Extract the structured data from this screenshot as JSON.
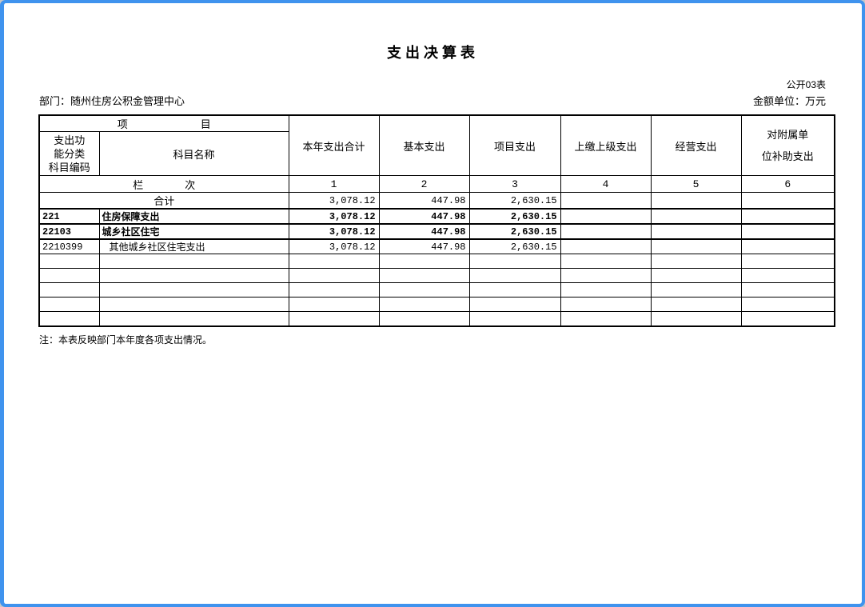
{
  "window": {
    "border_color": "#3f93ee"
  },
  "page": {
    "title": "支出决算表",
    "form_code": "公开03表",
    "department": "部门：随州住房公积金管理中心",
    "amount_unit": "金额单位：万元",
    "footnote": "注：本表反映部门本年度各项支出情况。"
  },
  "table": {
    "project_header": "项　　　　　　　目",
    "code_header": "支出功\n能分类\n科目编码",
    "subject_header": "科目名称",
    "value_columns": [
      "本年支出合计",
      "基本支出",
      "项目支出",
      "上缴上级支出",
      "经营支出",
      "对附属单\n位补助支出"
    ],
    "column_index_header": "栏　　　　次",
    "column_indexes": [
      "1",
      "2",
      "3",
      "4",
      "5",
      "6"
    ],
    "rows": [
      {
        "code": "",
        "name": "合计",
        "values": [
          "3,078.12",
          "447.98",
          "2,630.15",
          "",
          "",
          ""
        ]
      },
      {
        "code": "221",
        "name": "住房保障支出",
        "values": [
          "3,078.12",
          "447.98",
          "2,630.15",
          "",
          "",
          ""
        ]
      },
      {
        "code": "22103",
        "name": "城乡社区住宅",
        "values": [
          "3,078.12",
          "447.98",
          "2,630.15",
          "",
          "",
          ""
        ]
      },
      {
        "code": "2210399",
        "name": "其他城乡社区住宅支出",
        "values": [
          "3,078.12",
          "447.98",
          "2,630.15",
          "",
          "",
          ""
        ]
      }
    ],
    "empty_row_count": 5
  }
}
